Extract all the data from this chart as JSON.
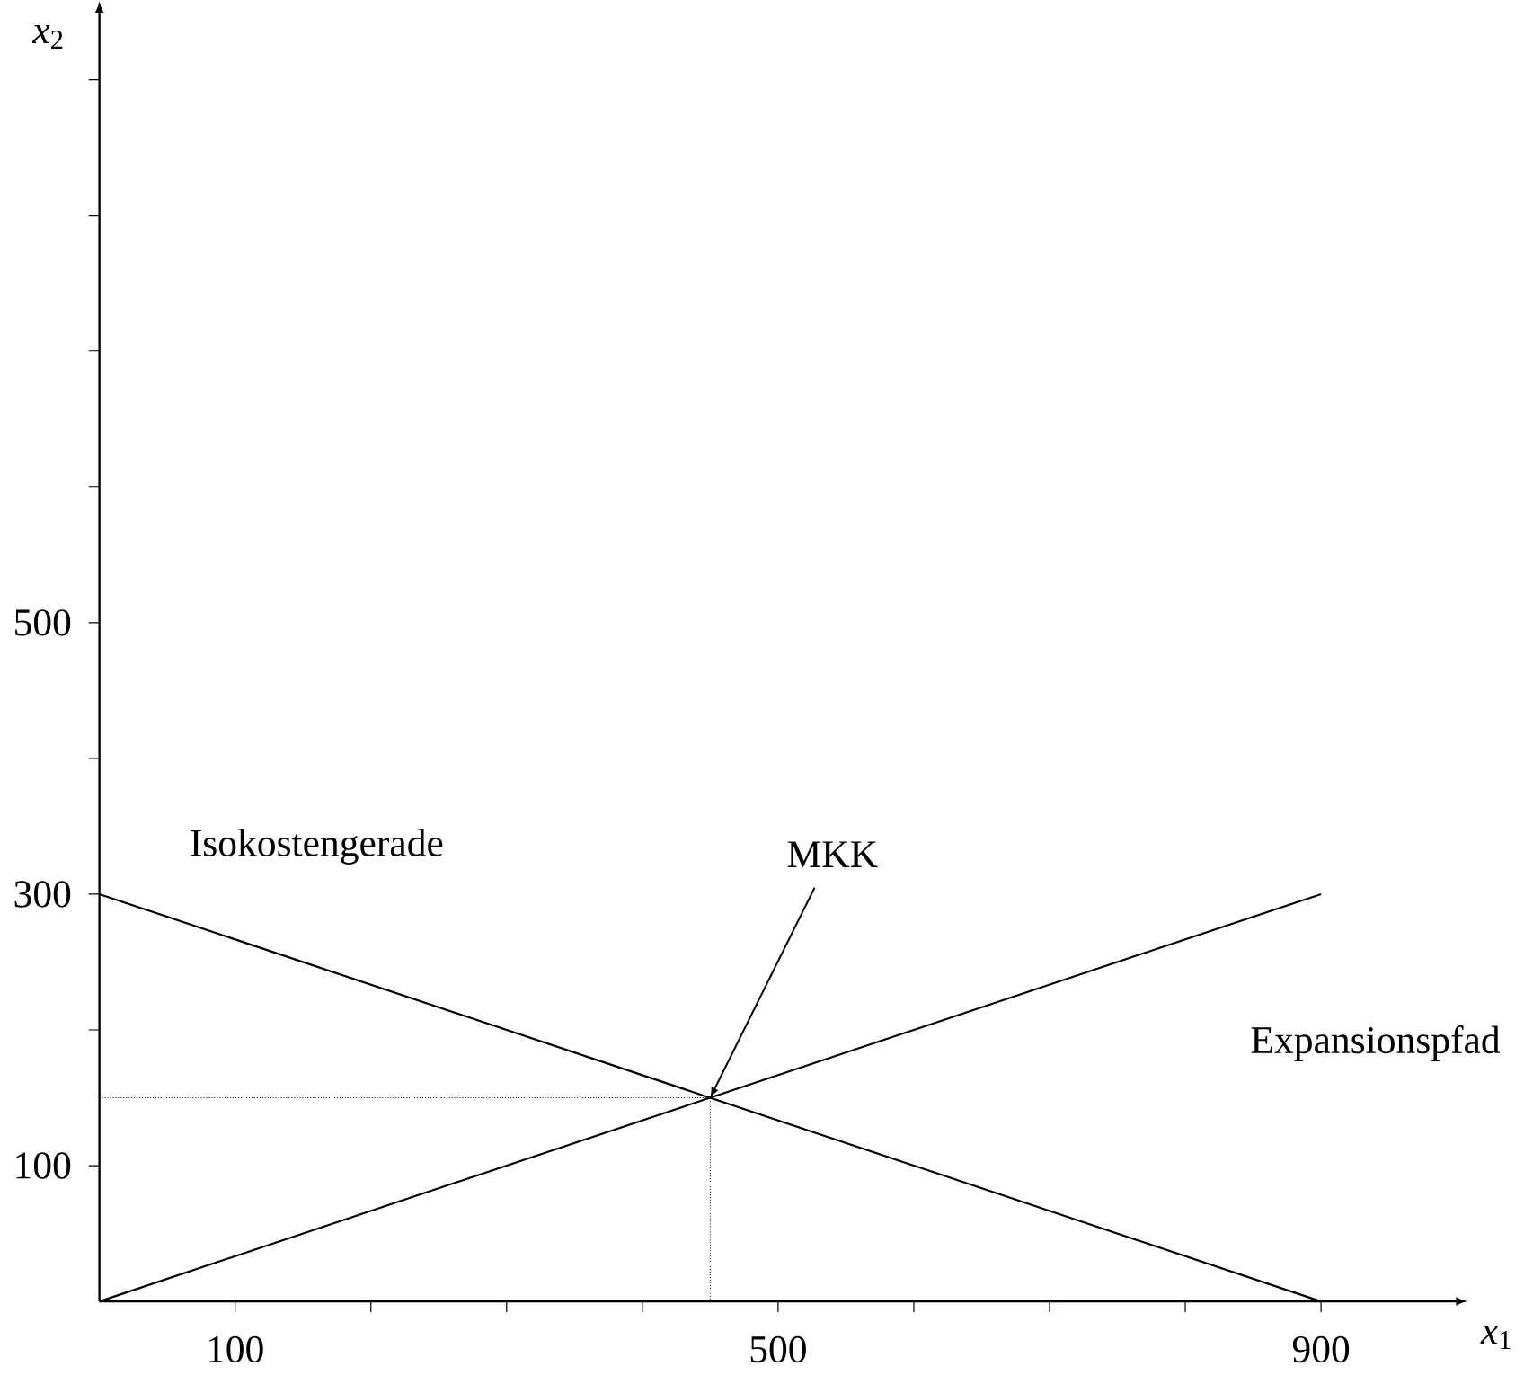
{
  "chart_data": {
    "type": "line",
    "xlabel": "*x*$_{1}$",
    "ylabel": "*x*$_{2}$",
    "xlim": [
      0,
      1000
    ],
    "ylim": [
      0,
      950
    ],
    "xticks": [
      100,
      {
        "value": 200,
        "label": null
      },
      {
        "value": 300,
        "label": null
      },
      {
        "value": 400,
        "label": null
      },
      500,
      {
        "value": 600,
        "label": null
      },
      {
        "value": 700,
        "label": null
      },
      {
        "value": 800,
        "label": null
      },
      900
    ],
    "yticks": [
      100,
      {
        "value": 200,
        "label": null
      },
      300,
      {
        "value": 400,
        "label": null
      },
      500,
      {
        "value": 600,
        "label": null
      },
      {
        "value": 700,
        "label": null
      },
      {
        "value": 800,
        "label": null
      },
      {
        "value": 900,
        "label": null
      }
    ],
    "series": [
      {
        "name": "Isokostengerade",
        "color": "#000000",
        "x": [
          0,
          900
        ],
        "values": [
          300,
          0
        ]
      },
      {
        "name": "Expansionspfad",
        "color": "#000000",
        "x": [
          0,
          900
        ],
        "values": [
          0,
          300
        ]
      },
      {
        "color": "#000000",
        "x": [
          0,
          450,
          450
        ],
        "values": [
          150,
          150,
          0
        ],
        "line_style": "dotted"
      }
    ],
    "annotations": [
      {
        "text": "MKK",
        "x": 450,
        "y": 150
      }
    ],
    "grid": false,
    "marker": "none"
  }
}
